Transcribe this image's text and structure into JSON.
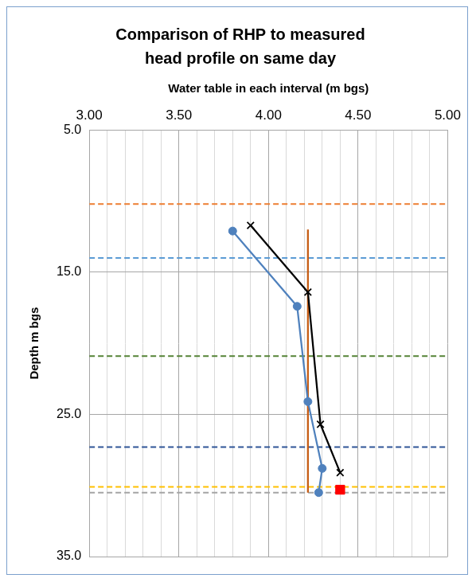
{
  "chart_data": {
    "type": "scatter",
    "title": [
      "Comparison of RHP to measured",
      "head profile on same day"
    ],
    "x_label": "Water table in each interval (m bgs)",
    "y_label": "Depth m bgs",
    "xlim": [
      3,
      5
    ],
    "xticks": [
      {
        "value": 3,
        "label": "3.00"
      },
      {
        "value": 3.5,
        "label": "3.50"
      },
      {
        "value": 4,
        "label": "4.00"
      },
      {
        "value": 4.5,
        "label": "4.50"
      },
      {
        "value": 5,
        "label": "5.00"
      }
    ],
    "ylim": [
      35,
      5
    ],
    "yticks": [
      {
        "value": 5,
        "label": "5.0"
      },
      {
        "value": 15,
        "label": "15.0"
      },
      {
        "value": 25,
        "label": "25.0"
      },
      {
        "value": 35,
        "label": "35.0"
      }
    ],
    "grid": true,
    "series": [
      {
        "color": "#000000",
        "marker": "cross",
        "line_style": "solid",
        "x": [
          3.9,
          4.22,
          4.29,
          4.4
        ],
        "values": [
          11.7,
          16.4,
          25.7,
          29.1
        ]
      },
      {
        "color": "#FF0000",
        "marker": "square",
        "line_style": "none",
        "x": [
          4.4
        ],
        "values": [
          30.3
        ]
      },
      {
        "color": "#4F81BD",
        "marker": "circle",
        "line_style": "solid",
        "x": [
          3.8,
          4.16,
          4.22,
          4.3,
          4.28
        ],
        "values": [
          12.1,
          17.4,
          24.1,
          28.8,
          30.5
        ]
      },
      {
        "color": "#C55A11",
        "marker": "none",
        "line_style": "solid",
        "x": [
          4.22,
          4.22
        ],
        "values": [
          12.0,
          30.5
        ]
      },
      {
        "color": "#ED7D31",
        "marker": "none",
        "line_style": "dashed",
        "x": [
          3,
          5
        ],
        "values": [
          10.2,
          10.2
        ]
      },
      {
        "color": "#5B9BD5",
        "marker": "none",
        "line_style": "dashed",
        "x": [
          3,
          5
        ],
        "values": [
          14.0,
          14.0
        ]
      },
      {
        "color": "#548235",
        "marker": "none",
        "line_style": "dashed",
        "x": [
          3,
          5
        ],
        "values": [
          20.9,
          20.9
        ]
      },
      {
        "color": "#2F5597",
        "marker": "none",
        "line_style": "dashed",
        "x": [
          3,
          5
        ],
        "values": [
          27.3,
          27.3
        ]
      },
      {
        "color": "#FFC000",
        "marker": "none",
        "line_style": "dashed",
        "x": [
          3,
          5
        ],
        "values": [
          30.1,
          30.1
        ]
      },
      {
        "color": "#A5A5A5",
        "marker": "none",
        "line_style": "dashed",
        "x": [
          3,
          5
        ],
        "values": [
          30.5,
          30.5
        ]
      }
    ]
  }
}
